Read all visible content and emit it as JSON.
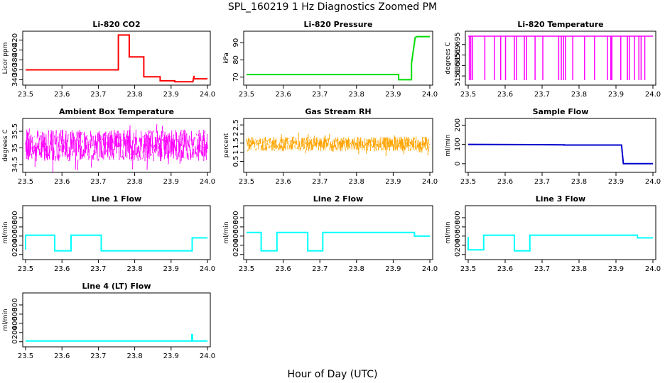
{
  "title": "SPL_160219  1 Hz Diagnostics Zoomed PM",
  "xlabel": "Hour of Day (UTC)",
  "x_ticks": [
    "23.5",
    "23.6",
    "23.7",
    "23.8",
    "23.9",
    "24.0"
  ],
  "chart_data": [
    {
      "type": "line",
      "title": "Li-820 CO2",
      "ylabel": "Licor ppm",
      "color": "#ff0000",
      "xlim": [
        23.5,
        24.0
      ],
      "ylim": [
        335,
        432
      ],
      "yticks": [
        340,
        360,
        380,
        400,
        420
      ],
      "series": [
        {
          "x": [
            23.5,
            23.755,
            23.755,
            23.785,
            23.785,
            23.825,
            23.825,
            23.87,
            23.87,
            23.91,
            23.91,
            23.96,
            23.963,
            23.963,
            24.0
          ],
          "y": [
            360,
            360,
            430,
            430,
            386,
            386,
            346,
            346,
            338,
            338,
            336,
            336,
            348,
            342,
            342
          ]
        }
      ]
    },
    {
      "type": "line",
      "title": "Li-820 Pressure",
      "ylabel": "kPa",
      "color": "#00dd00",
      "xlim": [
        23.5,
        24.0
      ],
      "ylim": [
        67,
        95
      ],
      "yticks": [
        70,
        80,
        90
      ],
      "series": [
        {
          "x": [
            23.5,
            23.915,
            23.915,
            23.95,
            23.95,
            23.96,
            23.965,
            24.0
          ],
          "y": [
            71.5,
            71.5,
            68.5,
            68.5,
            78,
            93,
            93.5,
            93.5
          ]
        }
      ]
    },
    {
      "type": "line",
      "title": "Li-820 Temperature",
      "ylabel": "degrees C",
      "color": "#ff00ff",
      "xlim": [
        23.5,
        24.0
      ],
      "ylim": [
        51.677,
        51.7
      ],
      "yticks": [
        51.68,
        51.685,
        51.69,
        51.695
      ],
      "baseline": 51.699,
      "dip_min": 51.678,
      "dips": [
        23.503,
        23.507,
        23.512,
        23.545,
        23.571,
        23.588,
        23.601,
        23.625,
        23.631,
        23.652,
        23.658,
        23.681,
        23.702,
        23.745,
        23.752,
        23.758,
        23.763,
        23.783,
        23.815,
        23.842,
        23.877,
        23.886,
        23.889,
        23.913,
        23.931,
        23.936,
        23.95,
        23.962,
        23.968,
        23.978
      ]
    },
    {
      "type": "line",
      "title": "Ambient Box Temperature",
      "ylabel": "degrees C",
      "color": "#ff00ff",
      "xlim": [
        23.5,
        24.0
      ],
      "ylim": [
        34.35,
        35.8
      ],
      "yticks": [
        34.5,
        35.0,
        35.5
      ],
      "band": [
        34.6,
        35.55
      ]
    },
    {
      "type": "scatter",
      "title": "Gas Stream RH",
      "ylabel": "percent",
      "color": "#ffa500",
      "xlim": [
        23.5,
        24.0
      ],
      "ylim": [
        0.05,
        2.7
      ],
      "yticks": [
        0.5,
        1.0,
        1.5,
        2.0,
        2.5
      ],
      "band": [
        1.05,
        1.85
      ]
    },
    {
      "type": "line",
      "title": "Sample Flow",
      "ylabel": "ml/min",
      "color": "#0000cc",
      "xlim": [
        23.5,
        24.0
      ],
      "ylim": [
        -30,
        220
      ],
      "yticks": [
        0,
        100,
        200
      ],
      "series": [
        {
          "x": [
            23.5,
            23.76,
            23.76,
            23.915,
            23.92,
            24.0
          ],
          "y": [
            100,
            98,
            97,
            97,
            0,
            0
          ]
        }
      ]
    },
    {
      "type": "line",
      "title": "Line 1 Flow",
      "ylabel": "ml/min",
      "color": "#00ffff",
      "xlim": [
        23.5,
        24.0
      ],
      "ylim": [
        -50,
        1000
      ],
      "yticks": [
        0,
        200,
        400,
        600,
        800
      ],
      "series": [
        {
          "x": [
            23.5,
            23.5,
            23.58,
            23.58,
            23.625,
            23.625,
            23.708,
            23.708,
            23.958,
            23.958,
            24.0
          ],
          "y": [
            110,
            420,
            420,
            80,
            80,
            420,
            420,
            80,
            80,
            360,
            360
          ]
        }
      ]
    },
    {
      "type": "line",
      "title": "Line 2 Flow",
      "ylabel": "ml/min",
      "color": "#00ffff",
      "xlim": [
        23.5,
        24.0
      ],
      "ylim": [
        -50,
        1000
      ],
      "yticks": [
        0,
        200,
        400,
        600,
        800
      ],
      "series": [
        {
          "x": [
            23.5,
            23.54,
            23.54,
            23.583,
            23.583,
            23.667,
            23.667,
            23.708,
            23.708,
            23.958,
            23.958,
            24.0
          ],
          "y": [
            480,
            480,
            80,
            80,
            480,
            480,
            80,
            80,
            480,
            480,
            400,
            400
          ]
        }
      ]
    },
    {
      "type": "line",
      "title": "Line 3 Flow",
      "ylabel": "ml/min",
      "color": "#00ffff",
      "xlim": [
        23.5,
        24.0
      ],
      "ylim": [
        -50,
        1000
      ],
      "yticks": [
        0,
        200,
        400,
        600,
        800
      ],
      "series": [
        {
          "x": [
            23.5,
            23.5,
            23.542,
            23.542,
            23.625,
            23.625,
            23.667,
            23.667,
            23.958,
            23.958,
            24.0
          ],
          "y": [
            380,
            100,
            100,
            420,
            420,
            80,
            80,
            420,
            420,
            360,
            360
          ]
        }
      ]
    },
    {
      "type": "line",
      "title": "Line 4 (LT) Flow",
      "ylabel": "ml/min",
      "color": "#00ffff",
      "xlim": [
        23.5,
        24.0
      ],
      "ylim": [
        -50,
        1000
      ],
      "yticks": [
        0,
        200,
        400,
        600,
        800
      ],
      "series": [
        {
          "x": [
            23.5,
            23.957,
            23.957,
            23.959,
            23.959,
            24.0
          ],
          "y": [
            15,
            15,
            150,
            150,
            15,
            15
          ]
        }
      ]
    }
  ]
}
